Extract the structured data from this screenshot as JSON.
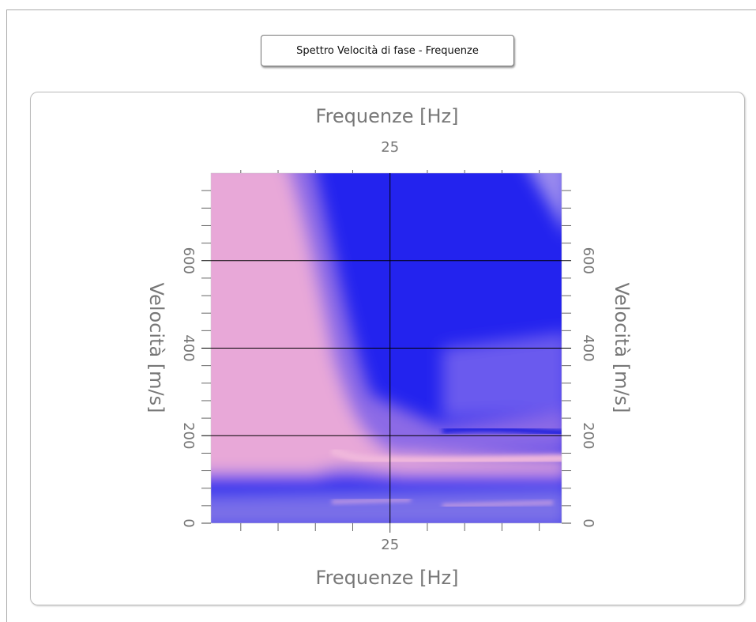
{
  "button": {
    "label": "Spettro Velocità di fase - Frequenze"
  },
  "chart_data": {
    "type": "heatmap",
    "xlabel": "Frequenze [Hz]",
    "ylabel": "Velocità [m/s]",
    "xlim": [
      1,
      48
    ],
    "xticks": [
      25
    ],
    "xminorticks": [
      5,
      10,
      15,
      20,
      30,
      35,
      40,
      45
    ],
    "ylim": [
      0,
      800
    ],
    "yticks": [
      0,
      200,
      400,
      600
    ],
    "yminorticks": [
      40,
      80,
      120,
      160,
      240,
      280,
      320,
      360,
      440,
      480,
      520,
      560,
      640,
      680,
      720,
      760
    ],
    "grid": true
  }
}
